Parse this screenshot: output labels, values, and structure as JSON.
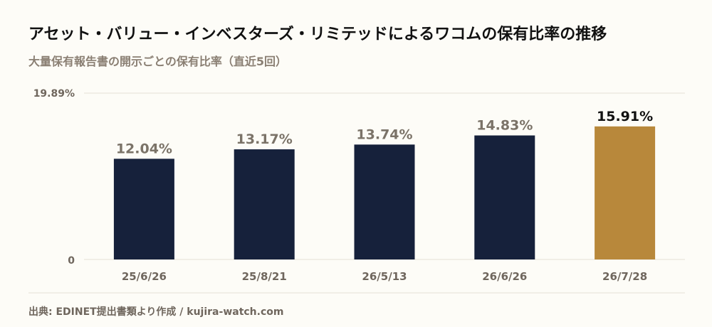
{
  "header": {
    "title": "アセット・バリュー・インベスターズ・リミテッドによるワコムの保有比率の推移",
    "subtitle": "大量保有報告書の開示ごとの保有比率（直近5回）"
  },
  "footer": {
    "source": "出典: EDINET提出書類より作成 / kujira-watch.com"
  },
  "colors": {
    "bar": "#16213b",
    "highlight": "#b8883b",
    "grid": "#e5e1d6",
    "tick": "#6f665d",
    "label": "#7b7368",
    "highlight_label": "#111111"
  },
  "chart_data": {
    "type": "bar",
    "title": "アセット・バリュー・インベスターズ・リミテッドによるワコムの保有比率の推移",
    "subtitle": "大量保有報告書の開示ごとの保有比率（直近5回）",
    "xlabel": "",
    "ylabel": "",
    "categories": [
      "25/6/26",
      "25/8/21",
      "26/5/13",
      "26/6/26",
      "26/7/28"
    ],
    "values": [
      12.04,
      13.17,
      13.74,
      14.83,
      15.91
    ],
    "value_labels": [
      "12.04%",
      "13.17%",
      "13.74%",
      "14.83%",
      "15.91%"
    ],
    "ylim": [
      0,
      19.89
    ],
    "yticks": [
      "0",
      "19.89%"
    ],
    "grid": true,
    "highlight_index": 4
  }
}
